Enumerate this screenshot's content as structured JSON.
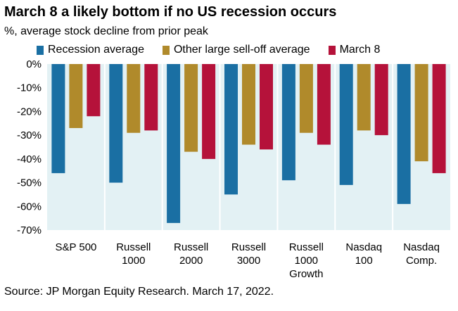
{
  "chart_data": {
    "type": "bar",
    "title": "March 8 a likely bottom if no US recession occurs",
    "subtitle": "%, average stock decline from prior peak",
    "categories": [
      [
        "S&P 500"
      ],
      [
        "Russell",
        "1000"
      ],
      [
        "Russell",
        "2000"
      ],
      [
        "Russell",
        "3000"
      ],
      [
        "Russell",
        "1000",
        "Growth"
      ],
      [
        "Nasdaq",
        "100"
      ],
      [
        "Nasdaq",
        "Comp."
      ]
    ],
    "series": [
      {
        "name": "Recession average",
        "color": "#1a6fa3",
        "values": [
          -46,
          -50,
          -67,
          -55,
          -49,
          -51,
          -59
        ]
      },
      {
        "name": "Other large sell-off average",
        "color": "#b08a2b",
        "values": [
          -27,
          -29,
          -37,
          -34,
          -29,
          -28,
          -41
        ]
      },
      {
        "name": "March 8",
        "color": "#b5123a",
        "values": [
          -22,
          -28,
          -40,
          -36,
          -34,
          -30,
          -46
        ]
      }
    ],
    "ylim": [
      -70,
      0
    ],
    "yticks": [
      0,
      -10,
      -20,
      -30,
      -40,
      -50,
      -60,
      -70
    ],
    "ytick_labels": [
      "0%",
      "-10%",
      "-20%",
      "-30%",
      "-40%",
      "-50%",
      "-60%",
      "-70%"
    ],
    "legend_position": "top",
    "plot_background": "#e3f1f4",
    "source": "Source: JP Morgan Equity Research. March 17, 2022."
  }
}
